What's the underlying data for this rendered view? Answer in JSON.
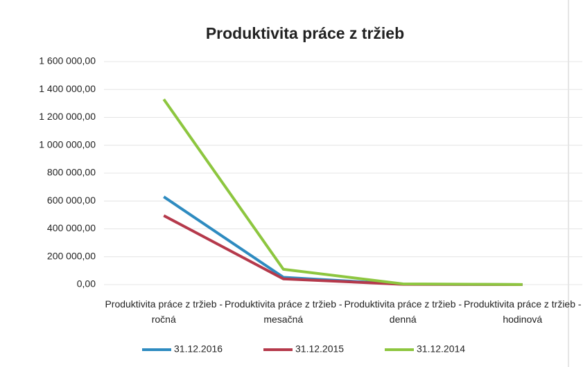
{
  "chart_data": {
    "type": "line",
    "title": "Produktivita práce z tržieb",
    "categories": [
      "Produktivita práce z tržieb - ročná",
      "Produktivita práce z tržieb - mesačná",
      "Produktivita práce z tržieb - denná",
      "Produktivita práce z tržieb - hodinová"
    ],
    "series": [
      {
        "name": "31.12.2016",
        "color": "#2e8bc0",
        "values": [
          630000,
          52500,
          2500,
          300
        ]
      },
      {
        "name": "31.12.2015",
        "color": "#b5394b",
        "values": [
          495000,
          41000,
          2000,
          250
        ]
      },
      {
        "name": "31.12.2014",
        "color": "#8dc63f",
        "values": [
          1330000,
          110000,
          5000,
          600
        ]
      }
    ],
    "ylim": [
      0,
      1600000
    ],
    "yticks": [
      {
        "value": 0,
        "label": "0,00"
      },
      {
        "value": 200000,
        "label": "200 000,00"
      },
      {
        "value": 400000,
        "label": "400 000,00"
      },
      {
        "value": 600000,
        "label": "600 000,00"
      },
      {
        "value": 800000,
        "label": "800 000,00"
      },
      {
        "value": 1000000,
        "label": "1 000 000,00"
      },
      {
        "value": 1200000,
        "label": "1 200 000,00"
      },
      {
        "value": 1400000,
        "label": "1 400 000,00"
      },
      {
        "value": 1600000,
        "label": "1 600 000,00"
      }
    ],
    "grid": true
  }
}
